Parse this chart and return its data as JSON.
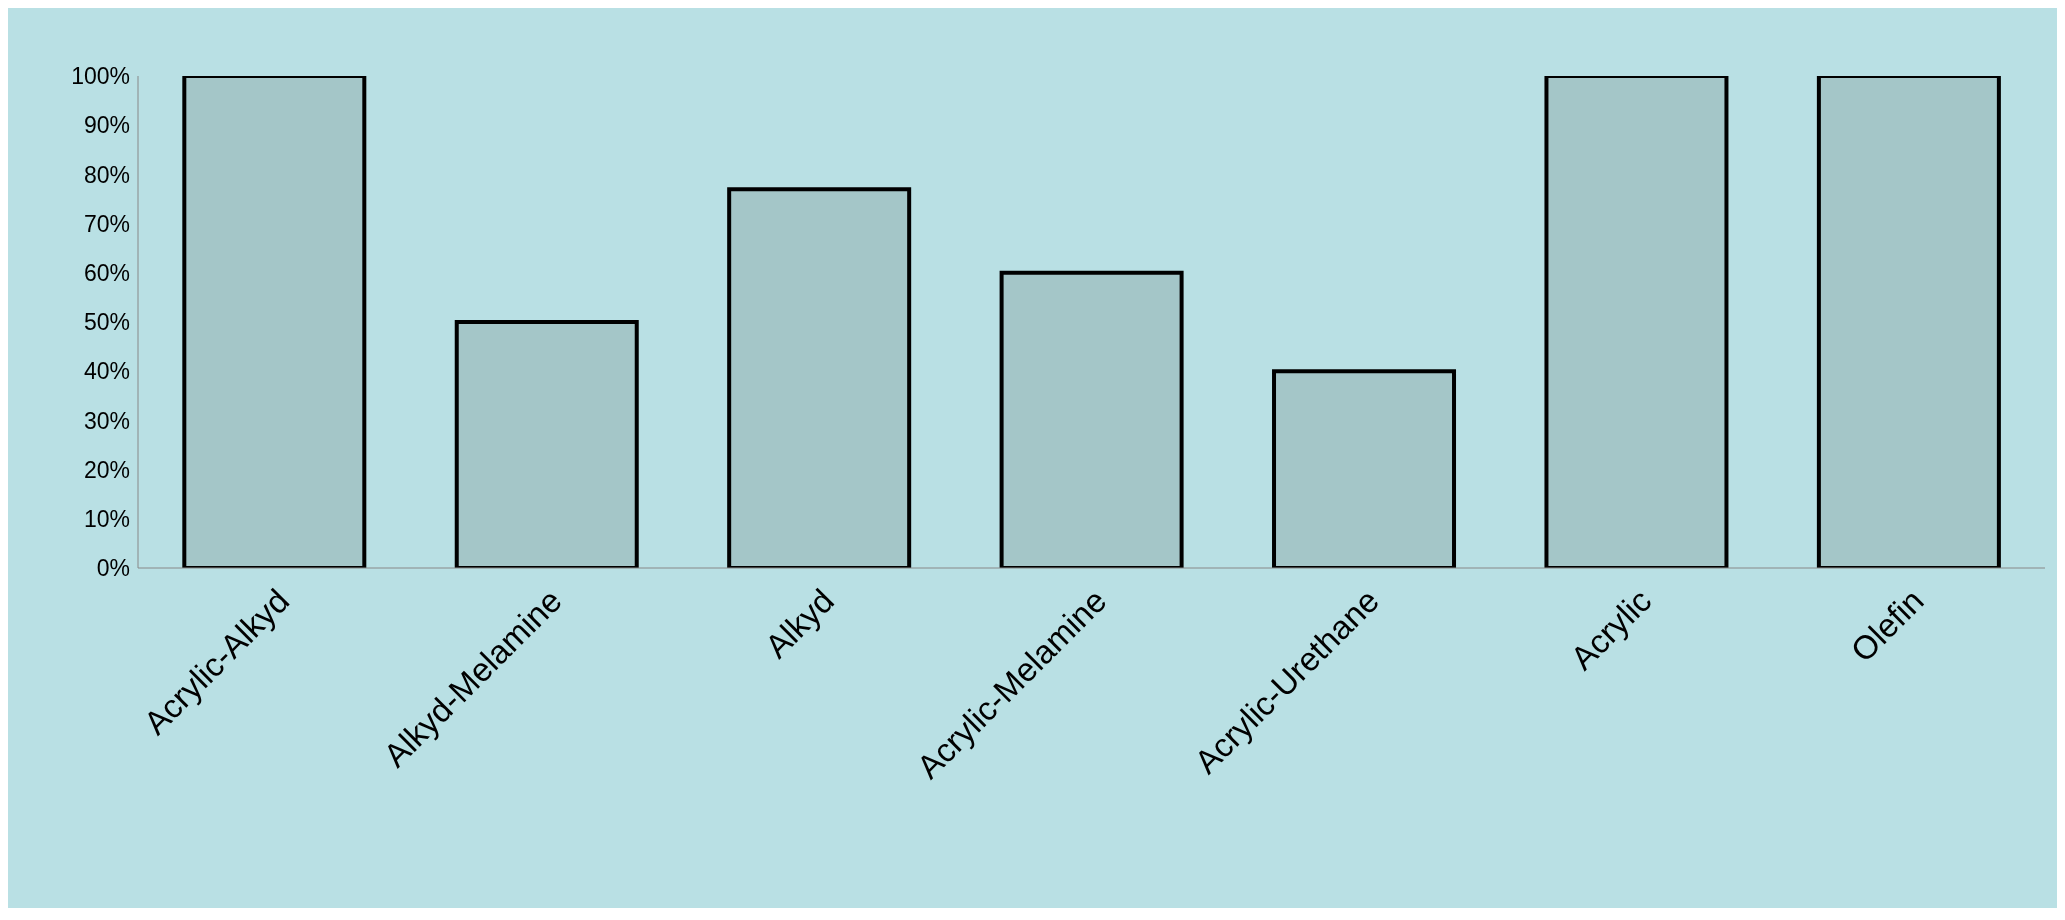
{
  "chart_data": {
    "type": "bar",
    "categories": [
      "Acrylic-Alkyd",
      "Alkyd-Melamine",
      "Alkyd",
      "Acrylic-Melamine",
      "Acrylic-Urethane",
      "Acrylic",
      "Olefin"
    ],
    "values": [
      100,
      50,
      77,
      60,
      40,
      100,
      100
    ],
    "color": "#a4c6c8",
    "ylim": [
      0,
      100
    ],
    "yticks": [
      {
        "value": 0,
        "label": "0%"
      },
      {
        "value": 10,
        "label": "10%"
      },
      {
        "value": 20,
        "label": "20%"
      },
      {
        "value": 30,
        "label": "30%"
      },
      {
        "value": 40,
        "label": "40%"
      },
      {
        "value": 50,
        "label": "50%"
      },
      {
        "value": 60,
        "label": "60%"
      },
      {
        "value": 70,
        "label": "70%"
      },
      {
        "value": 80,
        "label": "80%"
      },
      {
        "value": 90,
        "label": "90%"
      },
      {
        "value": 100,
        "label": "100%"
      }
    ],
    "grid": false,
    "legend": false
  }
}
